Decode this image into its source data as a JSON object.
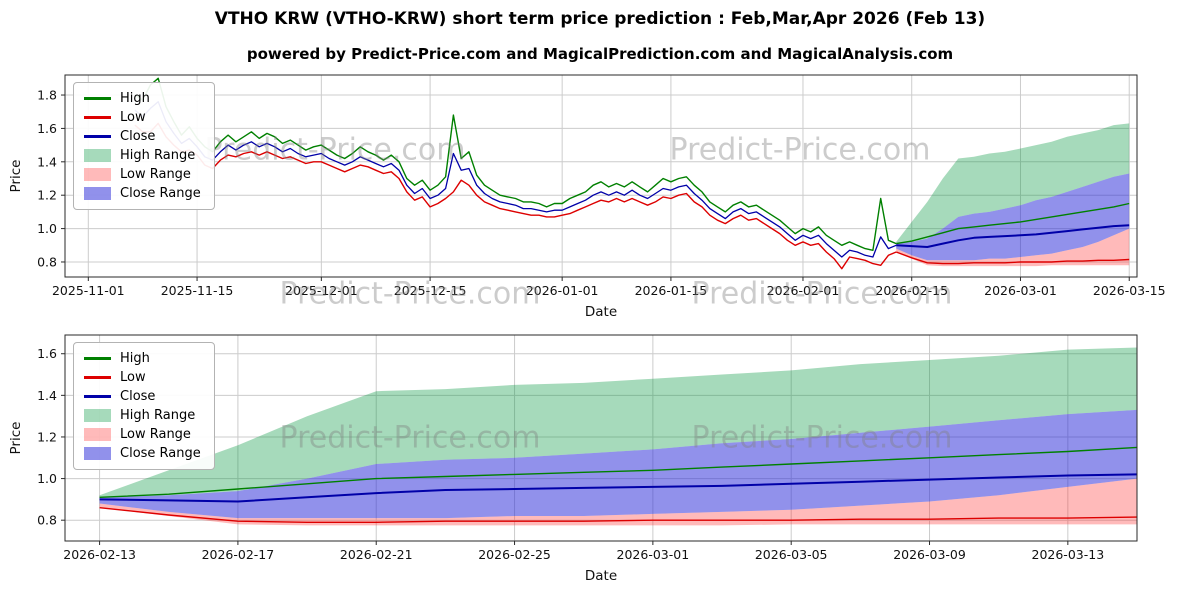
{
  "title": "VTHO KRW (VTHO-KRW) short term price prediction : Feb,Mar,Apr 2026 (Feb 13)",
  "subtitle": "powered by Predict-Price.com and MagicalPrediction.com and MagicalAnalysis.com",
  "watermark": {
    "text": "Predict-Price.com"
  },
  "chart_data": {
    "type": "line",
    "panels": [
      {
        "name": "history-forecast",
        "x_domain": [
          "2025-10-29",
          "2026-03-16"
        ],
        "y_domain": [
          0.71,
          1.92
        ],
        "x_ticks": [
          "2025-11-01",
          "2025-11-15",
          "2025-12-01",
          "2025-12-15",
          "2026-01-01",
          "2026-01-15",
          "2026-02-01",
          "2026-02-15",
          "2026-03-01",
          "2026-03-15"
        ],
        "y_ticks": [
          0.8,
          1.0,
          1.2,
          1.4,
          1.6,
          1.8
        ],
        "xlabel": "Date",
        "ylabel": "Price",
        "show_history": true
      },
      {
        "name": "forecast-detail",
        "x_domain": [
          "2026-02-12",
          "2026-03-15"
        ],
        "y_domain": [
          0.7,
          1.69
        ],
        "x_ticks": [
          "2026-02-13",
          "2026-02-17",
          "2026-02-21",
          "2026-02-25",
          "2026-03-01",
          "2026-03-05",
          "2026-03-09",
          "2026-03-13"
        ],
        "y_ticks": [
          0.8,
          1.0,
          1.2,
          1.4,
          1.6
        ],
        "xlabel": "Date",
        "ylabel": "Price",
        "show_history": false
      }
    ],
    "history": {
      "dates": [
        "2025-11-07",
        "2025-11-08",
        "2025-11-09",
        "2025-11-10",
        "2025-11-11",
        "2025-11-12",
        "2025-11-13",
        "2025-11-14",
        "2025-11-15",
        "2025-11-16",
        "2025-11-17",
        "2025-11-18",
        "2025-11-19",
        "2025-11-20",
        "2025-11-21",
        "2025-11-22",
        "2025-11-23",
        "2025-11-24",
        "2025-11-25",
        "2025-11-26",
        "2025-11-27",
        "2025-11-28",
        "2025-11-29",
        "2025-11-30",
        "2025-12-01",
        "2025-12-02",
        "2025-12-03",
        "2025-12-04",
        "2025-12-05",
        "2025-12-06",
        "2025-12-07",
        "2025-12-08",
        "2025-12-09",
        "2025-12-10",
        "2025-12-11",
        "2025-12-12",
        "2025-12-13",
        "2025-12-14",
        "2025-12-15",
        "2025-12-16",
        "2025-12-17",
        "2025-12-18",
        "2025-12-19",
        "2025-12-20",
        "2025-12-21",
        "2025-12-22",
        "2025-12-23",
        "2025-12-24",
        "2025-12-25",
        "2025-12-26",
        "2025-12-27",
        "2025-12-28",
        "2025-12-29",
        "2025-12-30",
        "2025-12-31",
        "2026-01-01",
        "2026-01-02",
        "2026-01-03",
        "2026-01-04",
        "2026-01-05",
        "2026-01-06",
        "2026-01-07",
        "2026-01-08",
        "2026-01-09",
        "2026-01-10",
        "2026-01-11",
        "2026-01-12",
        "2026-01-13",
        "2026-01-14",
        "2026-01-15",
        "2026-01-16",
        "2026-01-17",
        "2026-01-18",
        "2026-01-19",
        "2026-01-20",
        "2026-01-21",
        "2026-01-22",
        "2026-01-23",
        "2026-01-24",
        "2026-01-25",
        "2026-01-26",
        "2026-01-27",
        "2026-01-28",
        "2026-01-29",
        "2026-01-30",
        "2026-01-31",
        "2026-02-01",
        "2026-02-02",
        "2026-02-03",
        "2026-02-04",
        "2026-02-05",
        "2026-02-06",
        "2026-02-07",
        "2026-02-08",
        "2026-02-09",
        "2026-02-10",
        "2026-02-11",
        "2026-02-12",
        "2026-02-13"
      ],
      "high": [
        1.8,
        1.77,
        1.86,
        1.9,
        1.73,
        1.64,
        1.56,
        1.61,
        1.54,
        1.49,
        1.46,
        1.52,
        1.56,
        1.52,
        1.55,
        1.58,
        1.54,
        1.57,
        1.55,
        1.51,
        1.53,
        1.5,
        1.47,
        1.49,
        1.5,
        1.47,
        1.44,
        1.42,
        1.45,
        1.49,
        1.46,
        1.44,
        1.41,
        1.44,
        1.4,
        1.3,
        1.26,
        1.29,
        1.23,
        1.26,
        1.31,
        1.68,
        1.42,
        1.46,
        1.32,
        1.26,
        1.23,
        1.2,
        1.19,
        1.18,
        1.16,
        1.16,
        1.15,
        1.13,
        1.15,
        1.15,
        1.18,
        1.2,
        1.22,
        1.26,
        1.28,
        1.25,
        1.27,
        1.25,
        1.28,
        1.25,
        1.22,
        1.26,
        1.3,
        1.28,
        1.3,
        1.31,
        1.26,
        1.22,
        1.16,
        1.13,
        1.1,
        1.14,
        1.16,
        1.13,
        1.14,
        1.11,
        1.08,
        1.05,
        1.01,
        0.97,
        1.0,
        0.98,
        1.01,
        0.96,
        0.93,
        0.9,
        0.92,
        0.9,
        0.88,
        0.87,
        1.18,
        0.93,
        0.91
      ],
      "low": [
        1.62,
        1.58,
        1.58,
        1.63,
        1.55,
        1.5,
        1.46,
        1.47,
        1.44,
        1.38,
        1.36,
        1.41,
        1.44,
        1.43,
        1.45,
        1.46,
        1.44,
        1.46,
        1.44,
        1.42,
        1.43,
        1.41,
        1.39,
        1.4,
        1.4,
        1.38,
        1.36,
        1.34,
        1.36,
        1.38,
        1.37,
        1.35,
        1.33,
        1.34,
        1.3,
        1.22,
        1.17,
        1.19,
        1.13,
        1.15,
        1.18,
        1.22,
        1.29,
        1.26,
        1.2,
        1.16,
        1.14,
        1.12,
        1.11,
        1.1,
        1.09,
        1.08,
        1.08,
        1.07,
        1.07,
        1.08,
        1.09,
        1.11,
        1.13,
        1.15,
        1.17,
        1.16,
        1.18,
        1.16,
        1.18,
        1.16,
        1.14,
        1.16,
        1.19,
        1.18,
        1.2,
        1.21,
        1.16,
        1.13,
        1.08,
        1.05,
        1.03,
        1.06,
        1.08,
        1.05,
        1.06,
        1.03,
        1.0,
        0.97,
        0.93,
        0.9,
        0.92,
        0.9,
        0.91,
        0.86,
        0.82,
        0.76,
        0.83,
        0.82,
        0.81,
        0.79,
        0.78,
        0.84,
        0.86
      ],
      "close": [
        1.71,
        1.67,
        1.72,
        1.76,
        1.64,
        1.57,
        1.51,
        1.54,
        1.49,
        1.43,
        1.41,
        1.46,
        1.5,
        1.47,
        1.5,
        1.52,
        1.49,
        1.51,
        1.49,
        1.46,
        1.48,
        1.45,
        1.43,
        1.44,
        1.45,
        1.42,
        1.4,
        1.38,
        1.4,
        1.43,
        1.41,
        1.39,
        1.37,
        1.39,
        1.35,
        1.26,
        1.21,
        1.24,
        1.18,
        1.2,
        1.24,
        1.45,
        1.35,
        1.36,
        1.26,
        1.21,
        1.18,
        1.16,
        1.15,
        1.14,
        1.12,
        1.12,
        1.11,
        1.1,
        1.11,
        1.11,
        1.13,
        1.15,
        1.17,
        1.2,
        1.22,
        1.2,
        1.22,
        1.2,
        1.23,
        1.2,
        1.18,
        1.21,
        1.24,
        1.23,
        1.25,
        1.26,
        1.21,
        1.17,
        1.12,
        1.09,
        1.06,
        1.1,
        1.12,
        1.09,
        1.1,
        1.07,
        1.04,
        1.01,
        0.97,
        0.93,
        0.96,
        0.94,
        0.96,
        0.91,
        0.87,
        0.83,
        0.87,
        0.86,
        0.84,
        0.83,
        0.95,
        0.88,
        0.9
      ]
    },
    "forecast": {
      "dates": [
        "2026-02-13",
        "2026-02-15",
        "2026-02-17",
        "2026-02-19",
        "2026-02-21",
        "2026-02-23",
        "2026-02-25",
        "2026-02-27",
        "2026-03-01",
        "2026-03-03",
        "2026-03-05",
        "2026-03-07",
        "2026-03-09",
        "2026-03-11",
        "2026-03-13",
        "2026-03-15"
      ],
      "high": [
        0.91,
        0.925,
        0.95,
        0.975,
        1.0,
        1.01,
        1.02,
        1.03,
        1.04,
        1.055,
        1.07,
        1.085,
        1.1,
        1.115,
        1.13,
        1.15
      ],
      "low": [
        0.86,
        0.825,
        0.795,
        0.79,
        0.79,
        0.795,
        0.795,
        0.795,
        0.8,
        0.8,
        0.8,
        0.805,
        0.805,
        0.81,
        0.81,
        0.815
      ],
      "close": [
        0.9,
        0.895,
        0.89,
        0.91,
        0.93,
        0.945,
        0.95,
        0.955,
        0.96,
        0.965,
        0.975,
        0.985,
        0.995,
        1.005,
        1.015,
        1.02
      ],
      "high_range_top": [
        0.92,
        1.04,
        1.16,
        1.3,
        1.42,
        1.43,
        1.45,
        1.46,
        1.48,
        1.5,
        1.52,
        1.55,
        1.57,
        1.59,
        1.62,
        1.63
      ],
      "close_range_top": [
        0.91,
        0.92,
        0.94,
        1.0,
        1.07,
        1.09,
        1.1,
        1.12,
        1.14,
        1.17,
        1.19,
        1.22,
        1.25,
        1.28,
        1.31,
        1.33
      ],
      "close_range_bottom": [
        0.88,
        0.84,
        0.81,
        0.81,
        0.81,
        0.81,
        0.82,
        0.82,
        0.83,
        0.84,
        0.85,
        0.87,
        0.89,
        0.92,
        0.96,
        1.0
      ],
      "low_range_bottom": [
        0.86,
        0.82,
        0.78,
        0.775,
        0.775,
        0.775,
        0.775,
        0.775,
        0.775,
        0.775,
        0.78,
        0.78,
        0.78,
        0.78,
        0.78,
        0.78
      ]
    },
    "legend": [
      {
        "label": "High",
        "type": "line",
        "color": "high"
      },
      {
        "label": "Low",
        "type": "line",
        "color": "low"
      },
      {
        "label": "Close",
        "type": "line",
        "color": "close"
      },
      {
        "label": "High Range",
        "type": "patch",
        "color": "high_range"
      },
      {
        "label": "Low Range",
        "type": "patch",
        "color": "low_range"
      },
      {
        "label": "Close Range",
        "type": "patch",
        "color": "close_range"
      }
    ],
    "colors": {
      "high": "#008000",
      "low": "#dd0000",
      "close": "#0000a8",
      "high_range": "rgba(0,150,60,0.35)",
      "low_range": "rgba(255,45,45,0.33)",
      "close_range": "rgba(35,35,215,0.5)",
      "grid": "#cccccc",
      "spine": "#2a2a2a"
    }
  }
}
